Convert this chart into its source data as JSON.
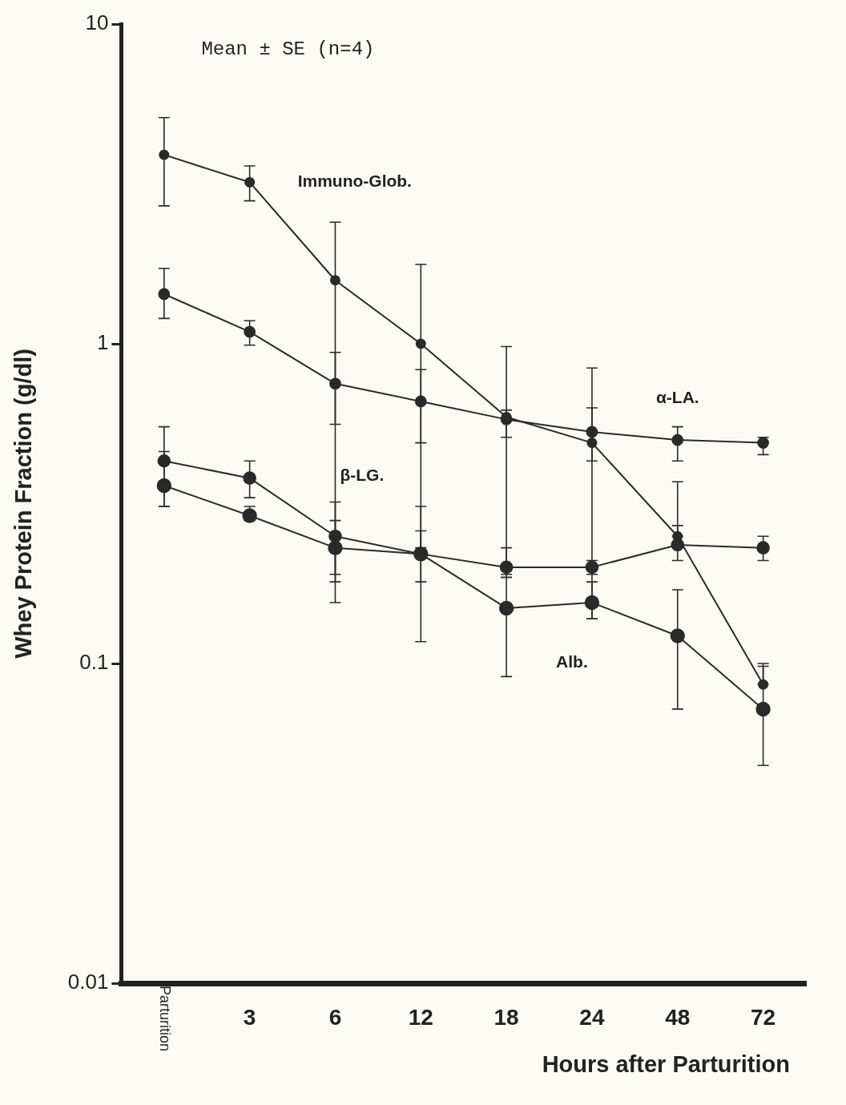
{
  "chart_data": {
    "type": "line",
    "xlabel": "Hours after Parturition",
    "ylabel": "Whey Protein Fraction (g/dl)",
    "categories": [
      "Parturition",
      "3",
      "6",
      "12",
      "18",
      "24",
      "48",
      "72"
    ],
    "log": "y",
    "ylim": [
      0.01,
      10
    ],
    "yticks": [
      0.01,
      0.1,
      1,
      10
    ],
    "grid": false,
    "legend": false,
    "marker": "circle",
    "line_style": "solid",
    "annotations": [
      "Mean ± SE (n=4)"
    ],
    "series": [
      {
        "name": "Immuno-Glob.",
        "color": "#2a2a2a",
        "values": [
          3.9,
          3.2,
          1.58,
          1.0,
          0.59,
          0.49,
          0.25,
          0.086
        ],
        "errors": [
          [
            2.7,
            5.1
          ],
          [
            2.8,
            3.6
          ],
          [
            0.18,
            2.4
          ],
          [
            0.23,
            1.77
          ],
          [
            0.186,
            0.98
          ],
          [
            0.138,
            0.84
          ],
          [
            0.25,
            0.37
          ],
          [
            0.086,
            0.1
          ]
        ]
      },
      {
        "name": "α-LA.",
        "color": "#2a2a2a",
        "values": [
          1.43,
          1.09,
          0.75,
          0.66,
          0.58,
          0.53,
          0.5,
          0.49
        ],
        "errors": [
          [
            1.2,
            1.72
          ],
          [
            0.99,
            1.18
          ],
          [
            0.56,
            0.94
          ],
          [
            0.49,
            0.83
          ],
          [
            0.51,
            0.62
          ],
          [
            0.43,
            0.63
          ],
          [
            0.43,
            0.55
          ],
          [
            0.45,
            0.51
          ]
        ]
      },
      {
        "name": "β-LG.",
        "color": "#2a2a2a",
        "values": [
          0.43,
          0.38,
          0.25,
          0.22,
          0.2,
          0.2,
          0.235,
          0.23
        ],
        "errors": [
          [
            0.31,
            0.55
          ],
          [
            0.33,
            0.43
          ],
          [
            0.19,
            0.32
          ],
          [
            0.117,
            0.31
          ],
          [
            0.186,
            0.23
          ],
          [
            0.19,
            0.21
          ],
          [
            0.21,
            0.27
          ],
          [
            0.21,
            0.25
          ]
        ]
      },
      {
        "name": "Alb.",
        "color": "#2a2a2a",
        "values": [
          0.36,
          0.29,
          0.23,
          0.22,
          0.149,
          0.155,
          0.122,
          0.072
        ],
        "errors": [
          [
            0.31,
            0.46
          ],
          [
            0.28,
            0.31
          ],
          [
            0.155,
            0.28
          ],
          [
            0.18,
            0.26
          ],
          [
            0.091,
            0.19
          ],
          [
            0.138,
            0.18
          ],
          [
            0.072,
            0.17
          ],
          [
            0.048,
            0.098
          ]
        ]
      }
    ]
  }
}
